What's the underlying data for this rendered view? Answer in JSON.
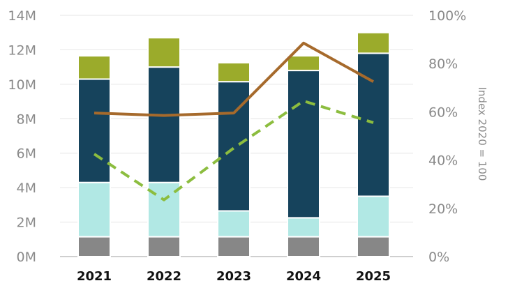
{
  "chart_data": {
    "type": "bar",
    "stacked": true,
    "categories": [
      "2021",
      "2022",
      "2023",
      "2024",
      "2025"
    ],
    "y_axis": {
      "ylim": [
        0,
        14
      ],
      "ticks": [
        0,
        2,
        4,
        6,
        8,
        10,
        12,
        14
      ],
      "tick_labels": [
        "0M",
        "2M",
        "4M",
        "6M",
        "8M",
        "10M",
        "12M",
        "14M"
      ]
    },
    "y2_axis": {
      "label": "Index 2020 = 100",
      "ylim": [
        0,
        100
      ],
      "ticks": [
        0,
        20,
        40,
        60,
        80,
        100
      ],
      "tick_labels": [
        "0%",
        "20%",
        "40%",
        "60%",
        "80%",
        "100%"
      ]
    },
    "grid": true,
    "bar_series": [
      {
        "color": "#878787",
        "values": [
          1.15,
          1.15,
          1.15,
          1.15,
          1.15
        ]
      },
      {
        "color": "#b1e8e4",
        "values": [
          3.15,
          3.15,
          1.5,
          1.1,
          2.35
        ]
      },
      {
        "color": "#16435c",
        "values": [
          6.0,
          6.7,
          7.5,
          8.55,
          8.3
        ]
      },
      {
        "color": "#9bab2b",
        "values": [
          1.35,
          1.7,
          1.1,
          0.85,
          1.2
        ]
      }
    ],
    "line_series": [
      {
        "axis": "y2",
        "style": "solid",
        "color": "#a66a2c",
        "values": [
          59.5,
          58.5,
          59.5,
          88.5,
          72.5
        ]
      },
      {
        "axis": "y2",
        "style": "dashed",
        "color": "#8cbd3f",
        "values": [
          42.5,
          23.5,
          45.0,
          64.5,
          55.5
        ]
      }
    ]
  }
}
